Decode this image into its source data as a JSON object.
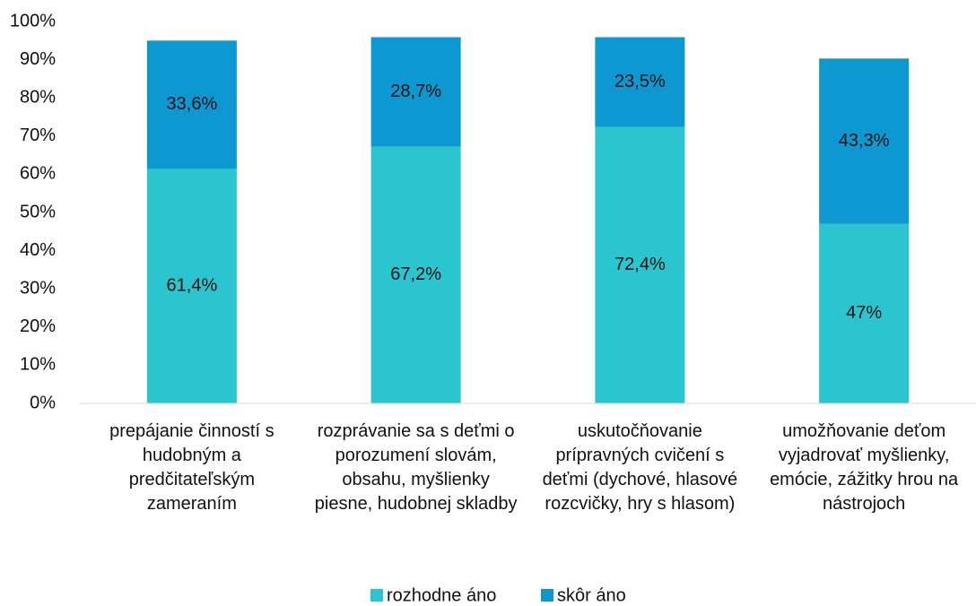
{
  "chart_data": {
    "type": "stacked_bar",
    "categories": [
      "prepájanie činností s hudobným a predčitateľským zameraním",
      "rozprávanie sa s deťmi o porozumení slovám, obsahu, myšlienky piesne, hudobnej skladby",
      "uskutočňovanie prípravných cvičení s deťmi (dychové, hlasové rozcvičky, hry s hlasom)",
      "umožňovanie deťom vyjadrovať myšlienky, emócie, zážitky hrou na nástrojoch"
    ],
    "series": [
      {
        "name": "rozhodne áno",
        "color": "#2bc5cf",
        "values": [
          61.4,
          67.2,
          72.4,
          47
        ],
        "value_labels": [
          "61,4%",
          "67,2%",
          "72,4%",
          "47%"
        ]
      },
      {
        "name": "skôr áno",
        "color": "#0e98d1",
        "values": [
          33.6,
          28.7,
          23.5,
          43.3
        ],
        "value_labels": [
          "33,6%",
          "28,7%",
          "23,5%",
          "43,3%"
        ]
      }
    ],
    "ylim": [
      0,
      100
    ],
    "yticks": [
      {
        "value": 0,
        "label": "0%"
      },
      {
        "value": 10,
        "label": "10%"
      },
      {
        "value": 20,
        "label": "20%"
      },
      {
        "value": 30,
        "label": "30%"
      },
      {
        "value": 40,
        "label": "40%"
      },
      {
        "value": 50,
        "label": "50%"
      },
      {
        "value": 60,
        "label": "60%"
      },
      {
        "value": 70,
        "label": "70%"
      },
      {
        "value": 80,
        "label": "80%"
      },
      {
        "value": 90,
        "label": "90%"
      },
      {
        "value": 100,
        "label": "100%"
      }
    ],
    "grid": false,
    "legend": "bottom"
  }
}
